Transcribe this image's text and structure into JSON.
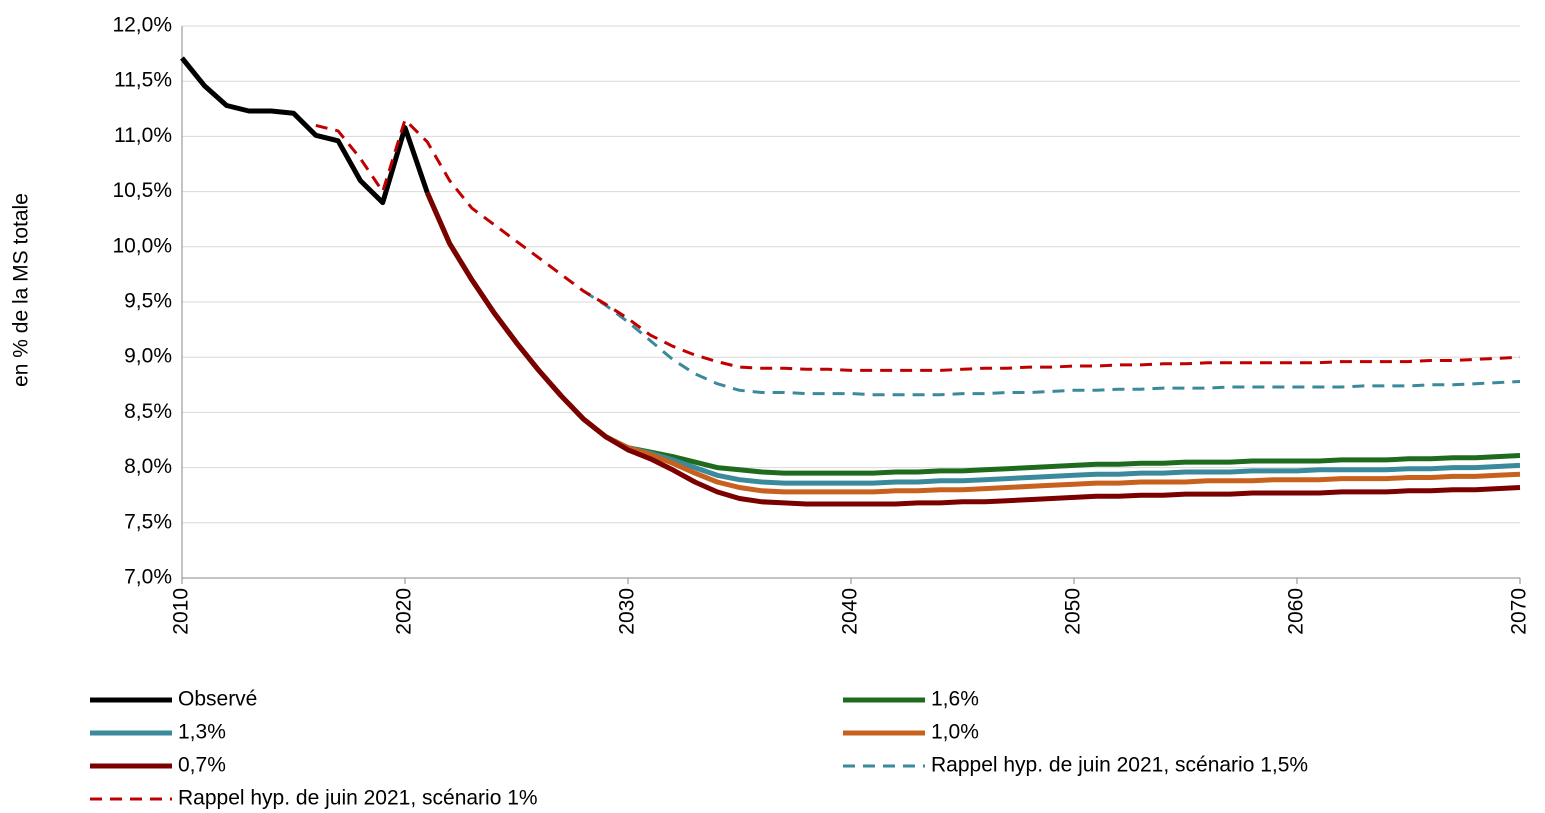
{
  "chart_data": {
    "type": "line",
    "y_label": "en % de la MS totale",
    "x": [
      2010,
      2011,
      2012,
      2013,
      2014,
      2015,
      2016,
      2017,
      2018,
      2019,
      2020,
      2021,
      2022,
      2023,
      2024,
      2025,
      2026,
      2027,
      2028,
      2029,
      2030,
      2031,
      2032,
      2033,
      2034,
      2035,
      2036,
      2037,
      2038,
      2039,
      2040,
      2041,
      2042,
      2043,
      2044,
      2045,
      2046,
      2047,
      2048,
      2049,
      2050,
      2051,
      2052,
      2053,
      2054,
      2055,
      2056,
      2057,
      2058,
      2059,
      2060,
      2061,
      2062,
      2063,
      2064,
      2065,
      2066,
      2067,
      2068,
      2069,
      2070
    ],
    "xlim": [
      2010,
      2070
    ],
    "xticks": [
      2010,
      2020,
      2030,
      2040,
      2050,
      2060,
      2070
    ],
    "ylim": [
      7,
      12
    ],
    "yticks": [
      {
        "value": 7,
        "label": "7,0%"
      },
      {
        "value": 7.5,
        "label": "7,5%"
      },
      {
        "value": 8,
        "label": "8,0%"
      },
      {
        "value": 8.5,
        "label": "8,5%"
      },
      {
        "value": 9,
        "label": "9,0%"
      },
      {
        "value": 9.5,
        "label": "9,5%"
      },
      {
        "value": 10,
        "label": "10,0%"
      },
      {
        "value": 10.5,
        "label": "10,5%"
      },
      {
        "value": 11,
        "label": "11,0%"
      },
      {
        "value": 11.5,
        "label": "11,5%"
      },
      {
        "value": 12,
        "label": "12,0%"
      }
    ],
    "grid": true,
    "legend": "bottom",
    "series": [
      {
        "name": "Observé",
        "color": "#000000",
        "dash": false,
        "values": [
          11.71,
          11.46,
          11.28,
          11.23,
          11.23,
          11.21,
          11.01,
          10.96,
          10.6,
          10.4,
          11.08,
          10.49,
          null,
          null,
          null,
          null,
          null,
          null,
          null,
          null,
          null,
          null,
          null,
          null,
          null,
          null,
          null,
          null,
          null,
          null,
          null,
          null,
          null,
          null,
          null,
          null,
          null,
          null,
          null,
          null,
          null,
          null,
          null,
          null,
          null,
          null,
          null,
          null,
          null,
          null,
          null,
          null,
          null,
          null,
          null,
          null,
          null,
          null,
          null,
          null,
          null
        ]
      },
      {
        "name": "1,6%",
        "color": "#1e6b1e",
        "dash": false,
        "values": [
          null,
          null,
          null,
          null,
          null,
          null,
          null,
          null,
          null,
          null,
          null,
          10.49,
          10.03,
          9.7,
          9.4,
          9.13,
          8.88,
          8.65,
          8.44,
          8.28,
          8.18,
          8.14,
          8.1,
          8.05,
          8.0,
          7.98,
          7.96,
          7.95,
          7.95,
          7.95,
          7.95,
          7.95,
          7.96,
          7.96,
          7.97,
          7.97,
          7.98,
          7.99,
          8.0,
          8.01,
          8.02,
          8.03,
          8.03,
          8.04,
          8.04,
          8.05,
          8.05,
          8.05,
          8.06,
          8.06,
          8.06,
          8.06,
          8.07,
          8.07,
          8.07,
          8.08,
          8.08,
          8.09,
          8.09,
          8.1,
          8.11
        ]
      },
      {
        "name": "1,3%",
        "color": "#3a8a9c",
        "dash": false,
        "values": [
          null,
          null,
          null,
          null,
          null,
          null,
          null,
          null,
          null,
          null,
          null,
          10.49,
          10.03,
          9.7,
          9.4,
          9.13,
          8.88,
          8.65,
          8.44,
          8.28,
          8.18,
          8.13,
          8.07,
          8.0,
          7.93,
          7.89,
          7.87,
          7.86,
          7.86,
          7.86,
          7.86,
          7.86,
          7.87,
          7.87,
          7.88,
          7.88,
          7.89,
          7.9,
          7.91,
          7.92,
          7.93,
          7.94,
          7.94,
          7.95,
          7.95,
          7.96,
          7.96,
          7.96,
          7.97,
          7.97,
          7.97,
          7.98,
          7.98,
          7.98,
          7.98,
          7.99,
          7.99,
          8.0,
          8.0,
          8.01,
          8.02
        ]
      },
      {
        "name": "1,0%",
        "color": "#c8601e",
        "dash": false,
        "values": [
          null,
          null,
          null,
          null,
          null,
          null,
          null,
          null,
          null,
          null,
          null,
          10.49,
          10.03,
          9.7,
          9.4,
          9.13,
          8.88,
          8.65,
          8.44,
          8.28,
          8.18,
          8.12,
          8.04,
          7.95,
          7.87,
          7.82,
          7.79,
          7.78,
          7.78,
          7.78,
          7.78,
          7.78,
          7.79,
          7.79,
          7.8,
          7.8,
          7.81,
          7.82,
          7.83,
          7.84,
          7.85,
          7.86,
          7.86,
          7.87,
          7.87,
          7.87,
          7.88,
          7.88,
          7.88,
          7.89,
          7.89,
          7.89,
          7.9,
          7.9,
          7.9,
          7.91,
          7.91,
          7.92,
          7.92,
          7.93,
          7.94
        ]
      },
      {
        "name": "0,7%",
        "color": "#7b0000",
        "dash": false,
        "values": [
          null,
          null,
          null,
          null,
          null,
          null,
          null,
          null,
          null,
          null,
          null,
          10.49,
          10.03,
          9.7,
          9.4,
          9.13,
          8.88,
          8.65,
          8.44,
          8.28,
          8.16,
          8.08,
          7.98,
          7.87,
          7.78,
          7.72,
          7.69,
          7.68,
          7.67,
          7.67,
          7.67,
          7.67,
          7.67,
          7.68,
          7.68,
          7.69,
          7.69,
          7.7,
          7.71,
          7.72,
          7.73,
          7.74,
          7.74,
          7.75,
          7.75,
          7.76,
          7.76,
          7.76,
          7.77,
          7.77,
          7.77,
          7.77,
          7.78,
          7.78,
          7.78,
          7.79,
          7.79,
          7.8,
          7.8,
          7.81,
          7.82
        ]
      },
      {
        "name": "Rappel hyp. de juin 2021, scénario 1,5%",
        "color": "#3a8a9c",
        "dash": true,
        "values": [
          null,
          null,
          null,
          null,
          null,
          null,
          null,
          null,
          null,
          null,
          null,
          null,
          null,
          null,
          null,
          null,
          null,
          null,
          9.6,
          9.47,
          9.32,
          9.15,
          8.98,
          8.85,
          8.76,
          8.7,
          8.68,
          8.68,
          8.67,
          8.67,
          8.67,
          8.66,
          8.66,
          8.66,
          8.66,
          8.67,
          8.67,
          8.68,
          8.68,
          8.69,
          8.7,
          8.7,
          8.71,
          8.71,
          8.72,
          8.72,
          8.72,
          8.73,
          8.73,
          8.73,
          8.73,
          8.73,
          8.73,
          8.74,
          8.74,
          8.74,
          8.75,
          8.75,
          8.76,
          8.77,
          8.78
        ]
      },
      {
        "name": "Rappel hyp. de juin 2021, scénario 1%",
        "color": "#c00000",
        "dash": true,
        "values": [
          null,
          null,
          null,
          null,
          null,
          null,
          11.1,
          11.05,
          10.8,
          10.5,
          11.15,
          10.95,
          10.6,
          10.35,
          10.2,
          10.05,
          9.9,
          9.75,
          9.6,
          9.48,
          9.35,
          9.2,
          9.1,
          9.02,
          8.96,
          8.91,
          8.9,
          8.9,
          8.89,
          8.89,
          8.88,
          8.88,
          8.88,
          8.88,
          8.88,
          8.89,
          8.9,
          8.9,
          8.91,
          8.91,
          8.92,
          8.92,
          8.93,
          8.93,
          8.94,
          8.94,
          8.95,
          8.95,
          8.95,
          8.95,
          8.95,
          8.95,
          8.96,
          8.96,
          8.96,
          8.96,
          8.97,
          8.97,
          8.98,
          8.99,
          9.0
        ]
      }
    ]
  }
}
